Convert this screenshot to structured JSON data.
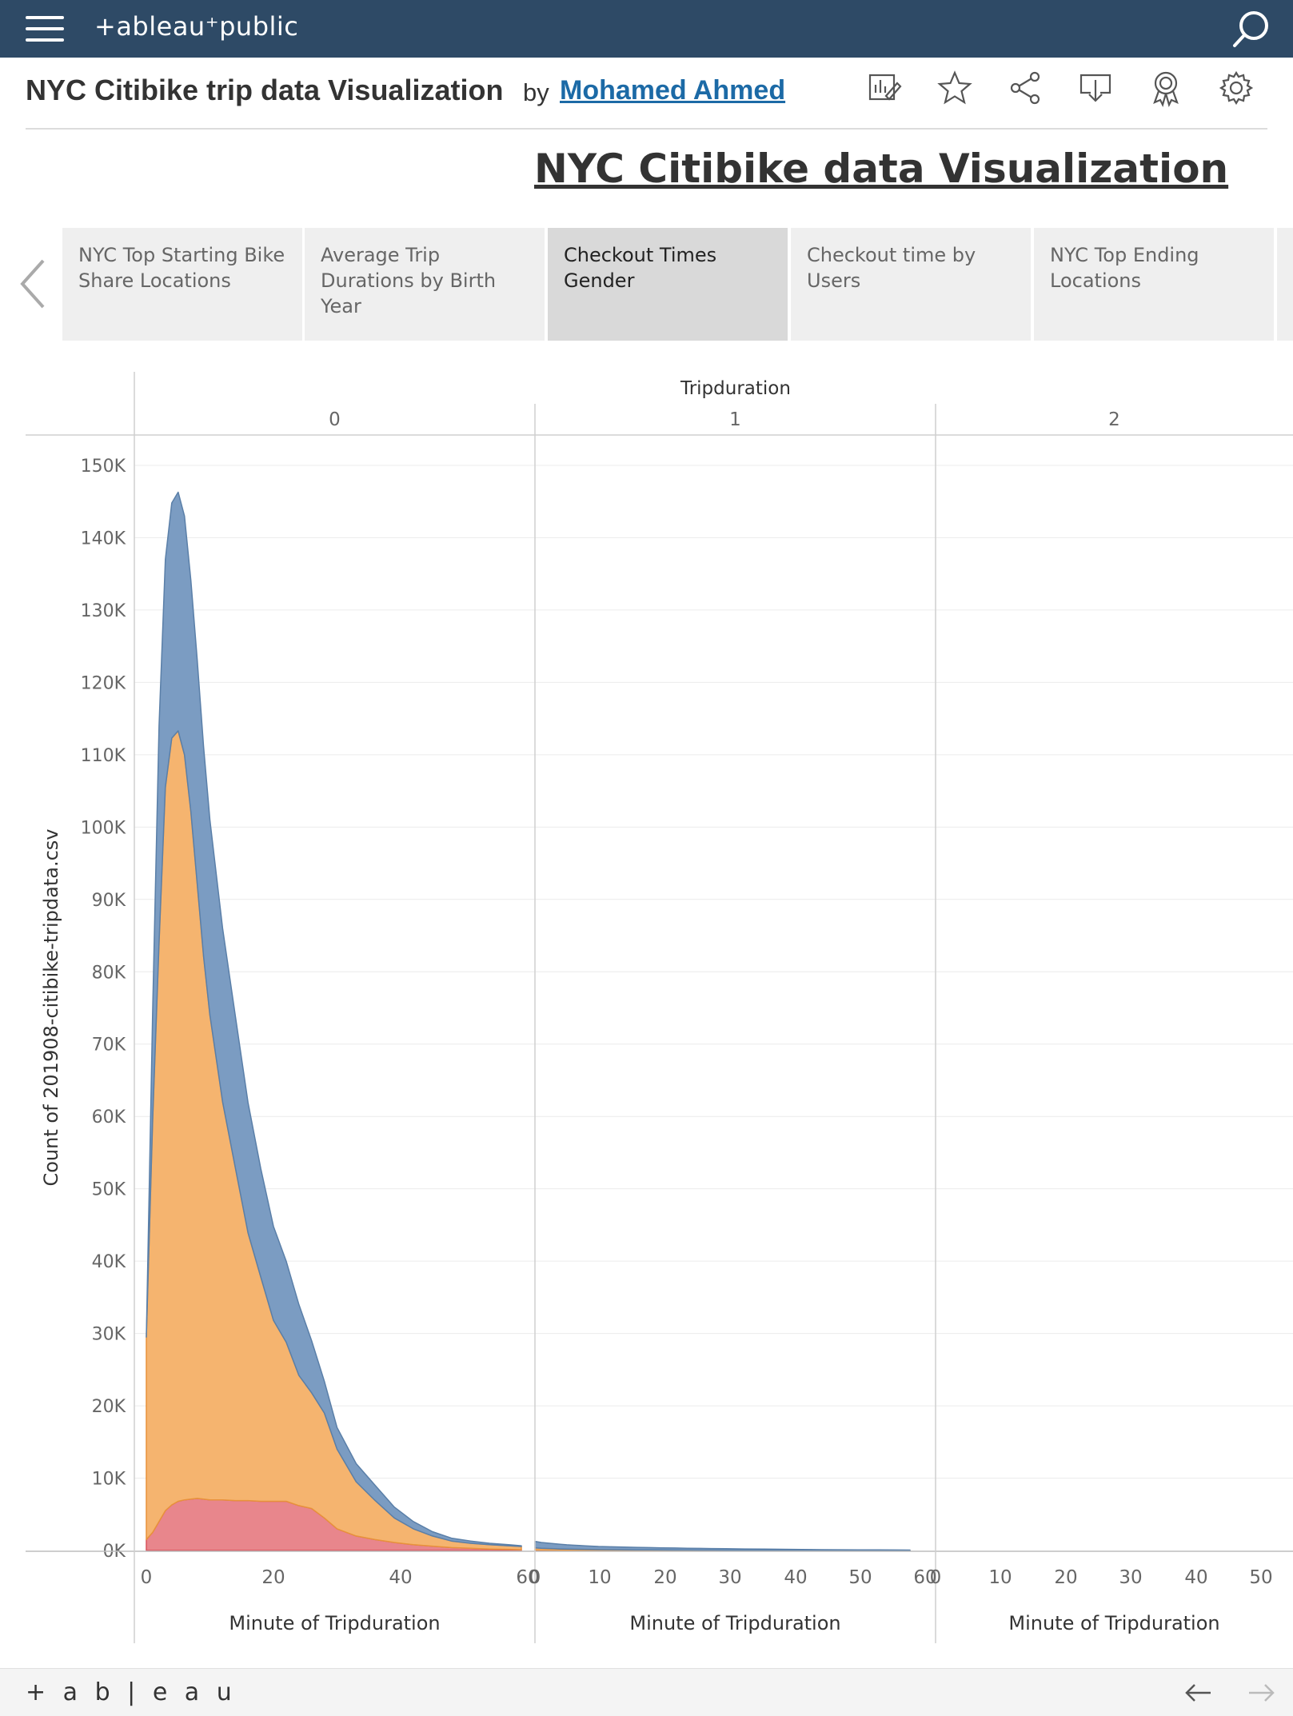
{
  "header": {
    "brand": "+ableau⁺public",
    "icons": {
      "menu": "hamburger-menu-icon",
      "search": "search-icon"
    }
  },
  "viz": {
    "title": "NYC Citibike trip data Visualization",
    "by": "by",
    "author": "Mohamed Ahmed",
    "action_icons": [
      "edit-viz-icon",
      "favorite-star-icon",
      "share-icon",
      "download-icon",
      "badge-icon",
      "settings-gear-icon"
    ]
  },
  "dashboard_title": "NYC Citibike data Visualization",
  "story_tabs": [
    {
      "label": "NYC Top Starting Bike Share Locations",
      "active": false
    },
    {
      "label": "Average Trip Durations by Birth Year",
      "active": false
    },
    {
      "label": "Checkout Times Gender",
      "active": true
    },
    {
      "label": "Checkout time by Users",
      "active": false
    },
    {
      "label": "NYC Top Ending Locations",
      "active": false
    }
  ],
  "chart_data": {
    "type": "area",
    "stacked": true,
    "column_header_title": "Tripduration",
    "panels": [
      "0",
      "1",
      "2"
    ],
    "xlabel": "Minute of Tripduration",
    "ylabel": "Count of 201908-citibike-tripdata.csv",
    "ylim": [
      0,
      150000
    ],
    "y_ticks": [
      "0K",
      "10K",
      "20K",
      "30K",
      "40K",
      "50K",
      "60K",
      "70K",
      "80K",
      "90K",
      "100K",
      "110K",
      "120K",
      "130K",
      "140K",
      "150K"
    ],
    "x_ticks": [
      [
        "0",
        "20",
        "40",
        "60"
      ],
      [
        "0",
        "10",
        "20",
        "30",
        "40",
        "50",
        "60"
      ],
      [
        "0",
        "10",
        "20",
        "30",
        "40",
        "50"
      ]
    ],
    "x": [
      0,
      1,
      2,
      3,
      4,
      5,
      6,
      7,
      8,
      9,
      10,
      12,
      14,
      16,
      18,
      20,
      22,
      24,
      26,
      28,
      30,
      33,
      36,
      39,
      42,
      45,
      48,
      51,
      54,
      57,
      59
    ],
    "series": [
      {
        "color": "#e8868c",
        "panel0": [
          1500,
          2500,
          4000,
          5500,
          6300,
          6800,
          7000,
          7100,
          7200,
          7100,
          7000,
          7000,
          6900,
          6900,
          6800,
          6800,
          6800,
          6200,
          5800,
          4500,
          3000,
          2000,
          1500,
          1100,
          800,
          600,
          400,
          300,
          200,
          150,
          100
        ],
        "panel1": [
          60,
          50,
          45,
          40,
          35,
          30,
          25,
          22,
          20,
          18,
          15,
          12,
          10,
          8,
          7,
          6,
          5,
          5,
          4,
          4,
          3,
          3,
          2,
          2,
          2,
          1,
          1,
          1,
          1,
          1,
          1
        ]
      },
      {
        "color": "#f5b46f",
        "panel0": [
          28000,
          57000,
          80000,
          100000,
          106000,
          106500,
          103000,
          95000,
          85000,
          75000,
          67000,
          55000,
          46000,
          37000,
          31000,
          25000,
          22000,
          18000,
          16000,
          14500,
          11000,
          7500,
          5400,
          3400,
          2200,
          1400,
          900,
          700,
          600,
          500,
          450
        ],
        "panel1": [
          300,
          250,
          230,
          200,
          180,
          160,
          150,
          140,
          130,
          120,
          110,
          100,
          90,
          80,
          70,
          60,
          55,
          50,
          45,
          40,
          35,
          30,
          25,
          20,
          18,
          15,
          12,
          10,
          8,
          6,
          5
        ]
      },
      {
        "color": "#7b9cc2",
        "panel0": [
          0,
          15000,
          30000,
          31500,
          32500,
          33000,
          33000,
          32000,
          31000,
          29000,
          27000,
          24000,
          21000,
          18000,
          15000,
          13000,
          11200,
          9800,
          7200,
          4400,
          3000,
          2500,
          2100,
          1500,
          1000,
          600,
          400,
          300,
          200,
          150,
          100
        ],
        "panel1": [
          900,
          800,
          750,
          700,
          650,
          600,
          560,
          520,
          490,
          460,
          430,
          400,
          370,
          340,
          320,
          300,
          280,
          260,
          240,
          220,
          200,
          180,
          160,
          140,
          120,
          100,
          90,
          80,
          70,
          60,
          50
        ]
      }
    ]
  },
  "footer": {
    "logo": "+ a b | e a u",
    "icons": {
      "back": "arrow-left-icon",
      "forward": "arrow-right-icon"
    }
  }
}
